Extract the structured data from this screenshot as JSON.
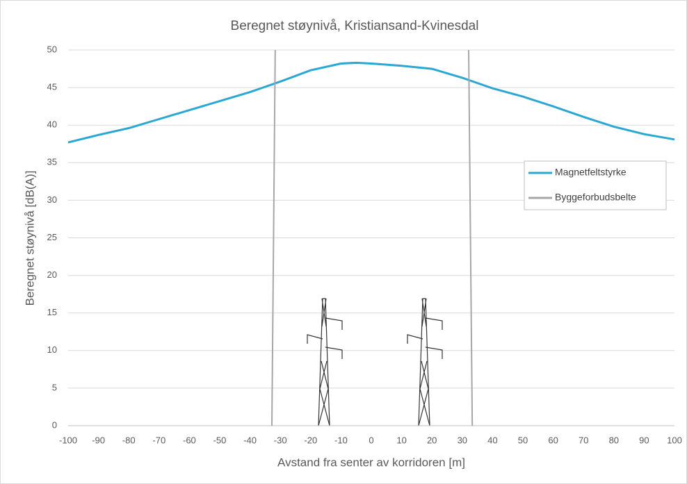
{
  "chart_data": {
    "type": "line",
    "title": "Beregnet støynivå, Kristiansand-Kvinesdal",
    "x_label": "Avstand fra senter av korridoren [m]",
    "y_label": "Beregnet støynivå [dB(A)]",
    "xlim": [
      -100,
      100
    ],
    "ylim": [
      0,
      50
    ],
    "xticks": [
      -100,
      -90,
      -80,
      -70,
      -60,
      -50,
      -40,
      -30,
      -20,
      -10,
      0,
      10,
      20,
      30,
      40,
      50,
      60,
      70,
      80,
      90,
      100
    ],
    "yticks": [
      0,
      5,
      10,
      15,
      20,
      25,
      30,
      35,
      40,
      45,
      50
    ],
    "grid": true,
    "legend": "right",
    "series": [
      {
        "name": "Magnetfeltstyrke",
        "color": "#2aa7d3",
        "x": [
          -100,
          -90,
          -80,
          -70,
          -60,
          -50,
          -40,
          -30,
          -20,
          -10,
          -5,
          0,
          10,
          20,
          30,
          40,
          50,
          60,
          70,
          80,
          90,
          100
        ],
        "values": [
          37.7,
          38.7,
          39.6,
          40.8,
          42.0,
          43.2,
          44.4,
          45.8,
          47.3,
          48.2,
          48.3,
          48.2,
          47.9,
          47.5,
          46.3,
          44.9,
          43.8,
          42.5,
          41.1,
          39.8,
          38.8,
          38.1
        ]
      },
      {
        "name": "Byggeforbudsbelte",
        "color": "#a6a6a6",
        "x": [
          -31.7,
          -32.8,
          null,
          32.1,
          33.3
        ],
        "values": [
          50,
          0,
          null,
          50,
          0
        ]
      }
    ]
  }
}
